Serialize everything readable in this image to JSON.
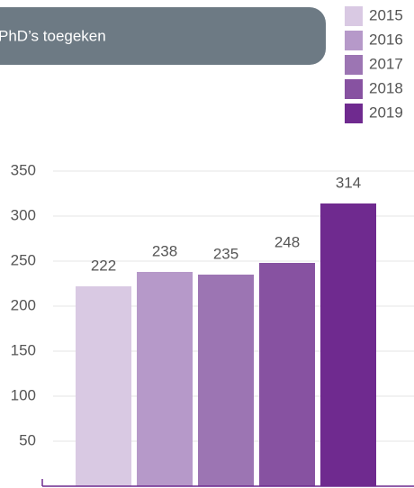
{
  "chart_data": {
    "type": "bar",
    "title": "PhD’s toegeken",
    "categories": [
      "2015",
      "2016",
      "2017",
      "2018",
      "2019"
    ],
    "values": [
      222,
      238,
      235,
      248,
      314
    ],
    "colors": [
      "#d9c9e3",
      "#b699c9",
      "#9c75b3",
      "#8752a1",
      "#6f2a8f"
    ],
    "ylim": [
      0,
      350
    ],
    "yticks": [
      50,
      100,
      150,
      200,
      250,
      300,
      350
    ],
    "grid": true,
    "legend": "top-right"
  }
}
